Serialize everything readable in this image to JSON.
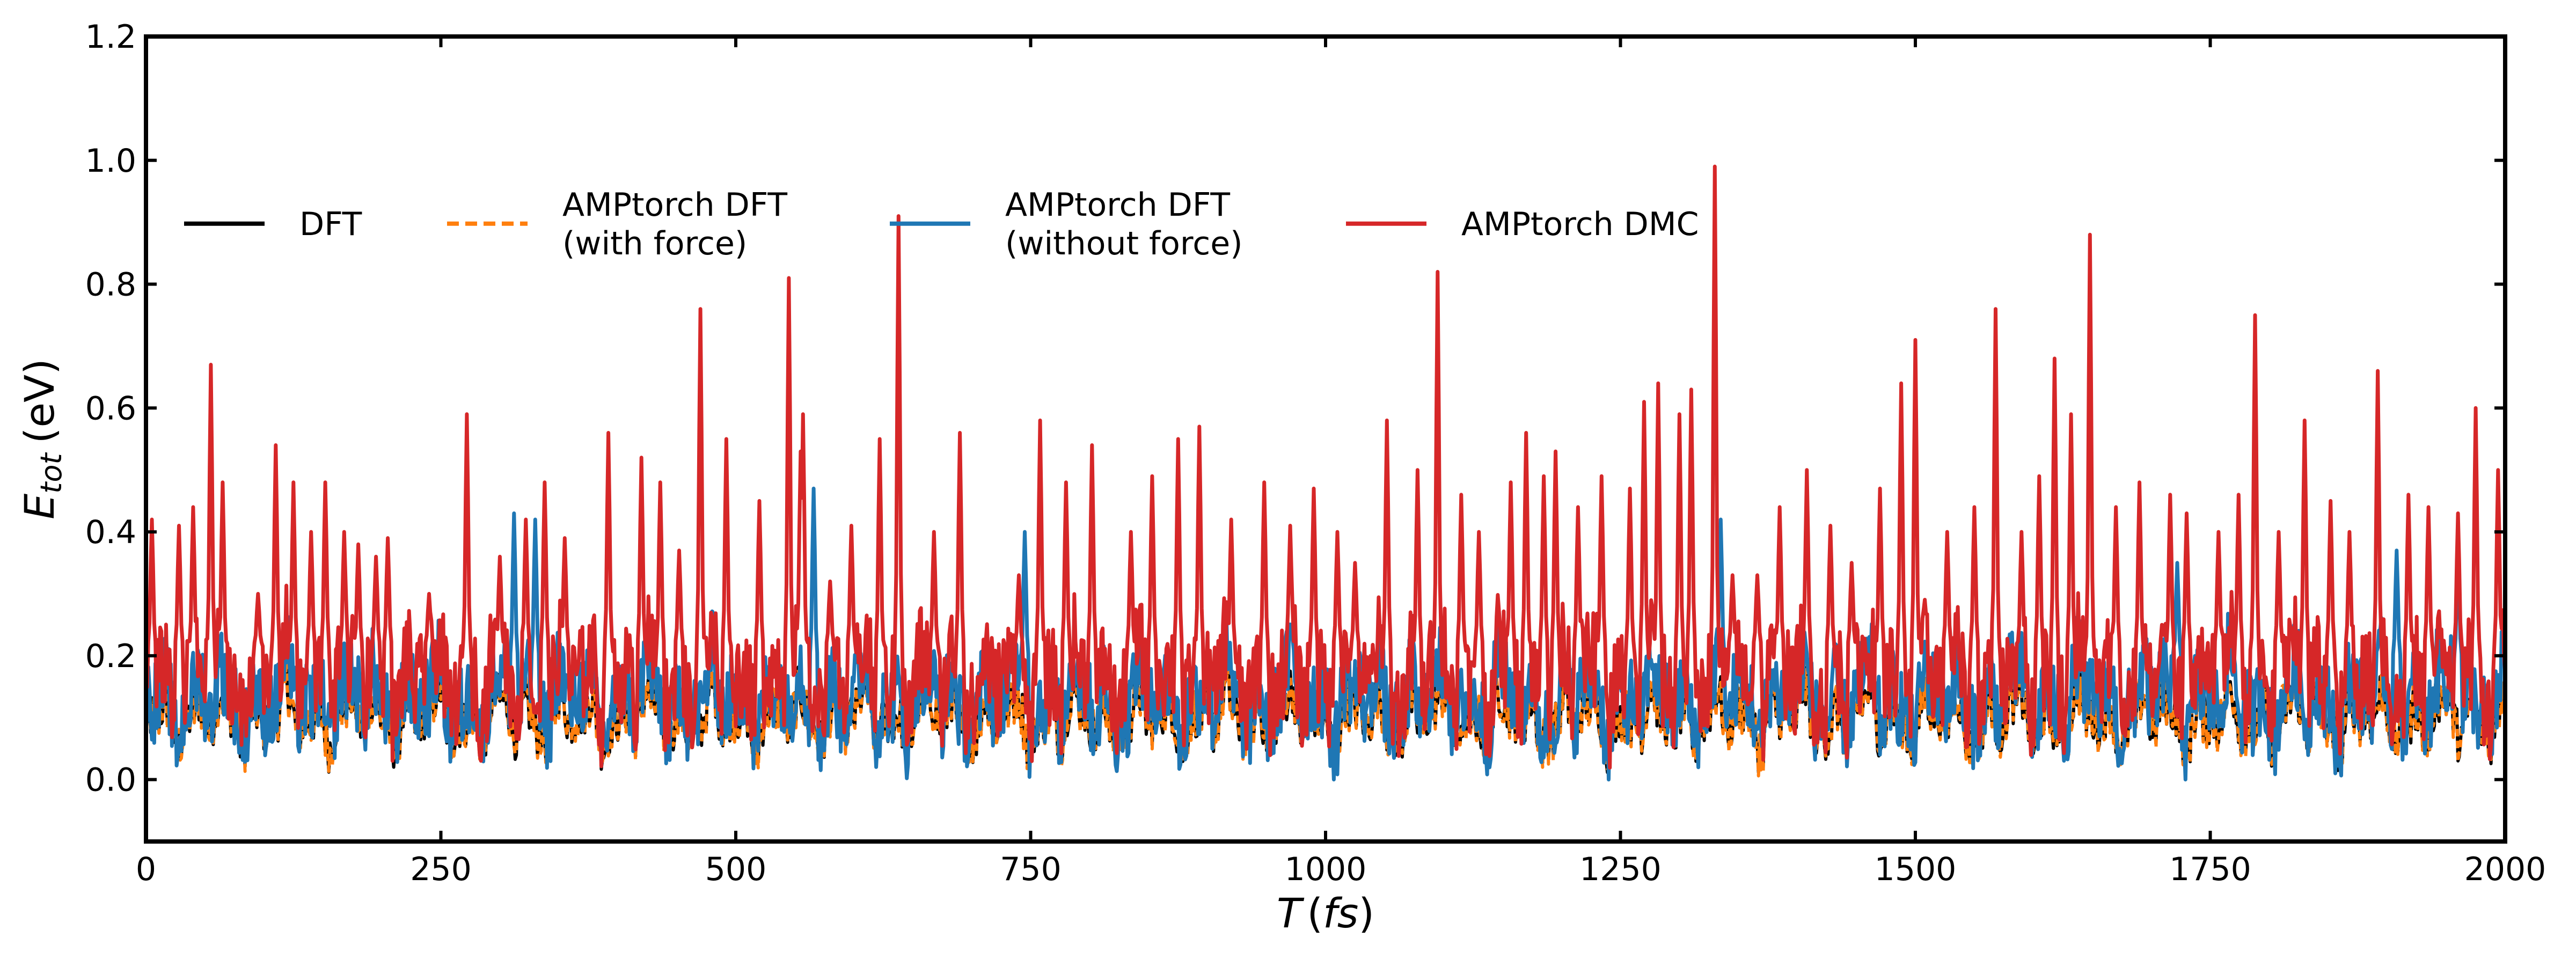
{
  "chart_data": {
    "type": "line",
    "xlabel": "T (fs)",
    "ylabel": "E_tot (eV)",
    "xlabel_parts": {
      "var": "T",
      "unit": "fs"
    },
    "ylabel_parts": {
      "var": "E",
      "sub": "tot",
      "unit": "(eV)"
    },
    "xlim": [
      0,
      2000
    ],
    "ylim": [
      -0.1,
      1.2
    ],
    "xticks": [
      "0",
      "250",
      "500",
      "750",
      "1000",
      "1250",
      "1500",
      "1750",
      "2000"
    ],
    "yticks": [
      "0.0",
      "0.2",
      "0.4",
      "0.6",
      "0.8",
      "1.0",
      "1.2"
    ],
    "grid": false,
    "legend_position": "top (inside, 4 columns)",
    "series": [
      {
        "name": "DFT",
        "lines": [
          "DFT"
        ],
        "color": "#000000",
        "style": "solid",
        "base": 0.1,
        "amp": 0.05,
        "noise": 0.04,
        "width": 6
      },
      {
        "name": "AMPtorch DFT (with force)",
        "lines": [
          "AMPtorch DFT",
          "(with force)"
        ],
        "color": "#ff7f0e",
        "style": "dashed",
        "base": 0.1,
        "amp": 0.05,
        "noise": 0.04,
        "width": 6
      },
      {
        "name": "AMPtorch DFT (without force)",
        "lines": [
          "AMPtorch DFT",
          "(without force)"
        ],
        "color": "#1f77b4",
        "style": "solid",
        "base": 0.13,
        "amp": 0.07,
        "noise": 0.07,
        "width": 7
      },
      {
        "name": "AMPtorch DMC",
        "lines": [
          "AMPtorch DMC"
        ],
        "color": "#d62728",
        "style": "solid",
        "base": 0.16,
        "amp": 0.07,
        "noise": 0.08,
        "width": 7,
        "peaks": [
          [
            5,
            0.42
          ],
          [
            28,
            0.41
          ],
          [
            40,
            0.44
          ],
          [
            55,
            0.67
          ],
          [
            65,
            0.48
          ],
          [
            95,
            0.3
          ],
          [
            110,
            0.54
          ],
          [
            125,
            0.48
          ],
          [
            140,
            0.4
          ],
          [
            152,
            0.48
          ],
          [
            168,
            0.4
          ],
          [
            180,
            0.38
          ],
          [
            195,
            0.36
          ],
          [
            205,
            0.39
          ],
          [
            240,
            0.3
          ],
          [
            272,
            0.59
          ],
          [
            300,
            0.36
          ],
          [
            322,
            0.42
          ],
          [
            338,
            0.48
          ],
          [
            355,
            0.39
          ],
          [
            392,
            0.56
          ],
          [
            420,
            0.52
          ],
          [
            436,
            0.48
          ],
          [
            452,
            0.37
          ],
          [
            470,
            0.76
          ],
          [
            492,
            0.55
          ],
          [
            520,
            0.45
          ],
          [
            545,
            0.81
          ],
          [
            555,
            0.53
          ],
          [
            557,
            0.59
          ],
          [
            580,
            0.32
          ],
          [
            598,
            0.41
          ],
          [
            622,
            0.55
          ],
          [
            638,
            0.91
          ],
          [
            668,
            0.4
          ],
          [
            690,
            0.56
          ],
          [
            740,
            0.33
          ],
          [
            758,
            0.58
          ],
          [
            780,
            0.48
          ],
          [
            802,
            0.54
          ],
          [
            835,
            0.4
          ],
          [
            853,
            0.49
          ],
          [
            875,
            0.55
          ],
          [
            893,
            0.57
          ],
          [
            920,
            0.42
          ],
          [
            948,
            0.48
          ],
          [
            970,
            0.41
          ],
          [
            990,
            0.47
          ],
          [
            1010,
            0.4
          ],
          [
            1025,
            0.35
          ],
          [
            1052,
            0.58
          ],
          [
            1078,
            0.5
          ],
          [
            1095,
            0.82
          ],
          [
            1115,
            0.46
          ],
          [
            1130,
            0.4
          ],
          [
            1157,
            0.48
          ],
          [
            1170,
            0.56
          ],
          [
            1185,
            0.49
          ],
          [
            1195,
            0.53
          ],
          [
            1214,
            0.44
          ],
          [
            1234,
            0.49
          ],
          [
            1258,
            0.47
          ],
          [
            1270,
            0.61
          ],
          [
            1282,
            0.64
          ],
          [
            1300,
            0.59
          ],
          [
            1310,
            0.63
          ],
          [
            1330,
            0.99
          ],
          [
            1345,
            0.33
          ],
          [
            1366,
            0.33
          ],
          [
            1385,
            0.44
          ],
          [
            1408,
            0.5
          ],
          [
            1428,
            0.41
          ],
          [
            1446,
            0.35
          ],
          [
            1470,
            0.47
          ],
          [
            1488,
            0.64
          ],
          [
            1500,
            0.71
          ],
          [
            1527,
            0.4
          ],
          [
            1550,
            0.44
          ],
          [
            1568,
            0.76
          ],
          [
            1590,
            0.4
          ],
          [
            1605,
            0.49
          ],
          [
            1618,
            0.68
          ],
          [
            1632,
            0.59
          ],
          [
            1648,
            0.88
          ],
          [
            1670,
            0.44
          ],
          [
            1690,
            0.48
          ],
          [
            1716,
            0.46
          ],
          [
            1730,
            0.43
          ],
          [
            1757,
            0.4
          ],
          [
            1774,
            0.46
          ],
          [
            1788,
            0.75
          ],
          [
            1808,
            0.4
          ],
          [
            1830,
            0.58
          ],
          [
            1852,
            0.45
          ],
          [
            1868,
            0.4
          ],
          [
            1892,
            0.66
          ],
          [
            1918,
            0.46
          ],
          [
            1935,
            0.44
          ],
          [
            1960,
            0.43
          ],
          [
            1975,
            0.6
          ],
          [
            1994,
            0.5
          ]
        ]
      }
    ],
    "blue_peaks": [
      [
        312,
        0.43
      ],
      [
        330,
        0.42
      ],
      [
        566,
        0.47
      ],
      [
        745,
        0.4
      ],
      [
        1335,
        0.42
      ],
      [
        1722,
        0.35
      ],
      [
        1908,
        0.37
      ],
      [
        1960,
        0.37
      ]
    ],
    "n_points": 2001
  }
}
